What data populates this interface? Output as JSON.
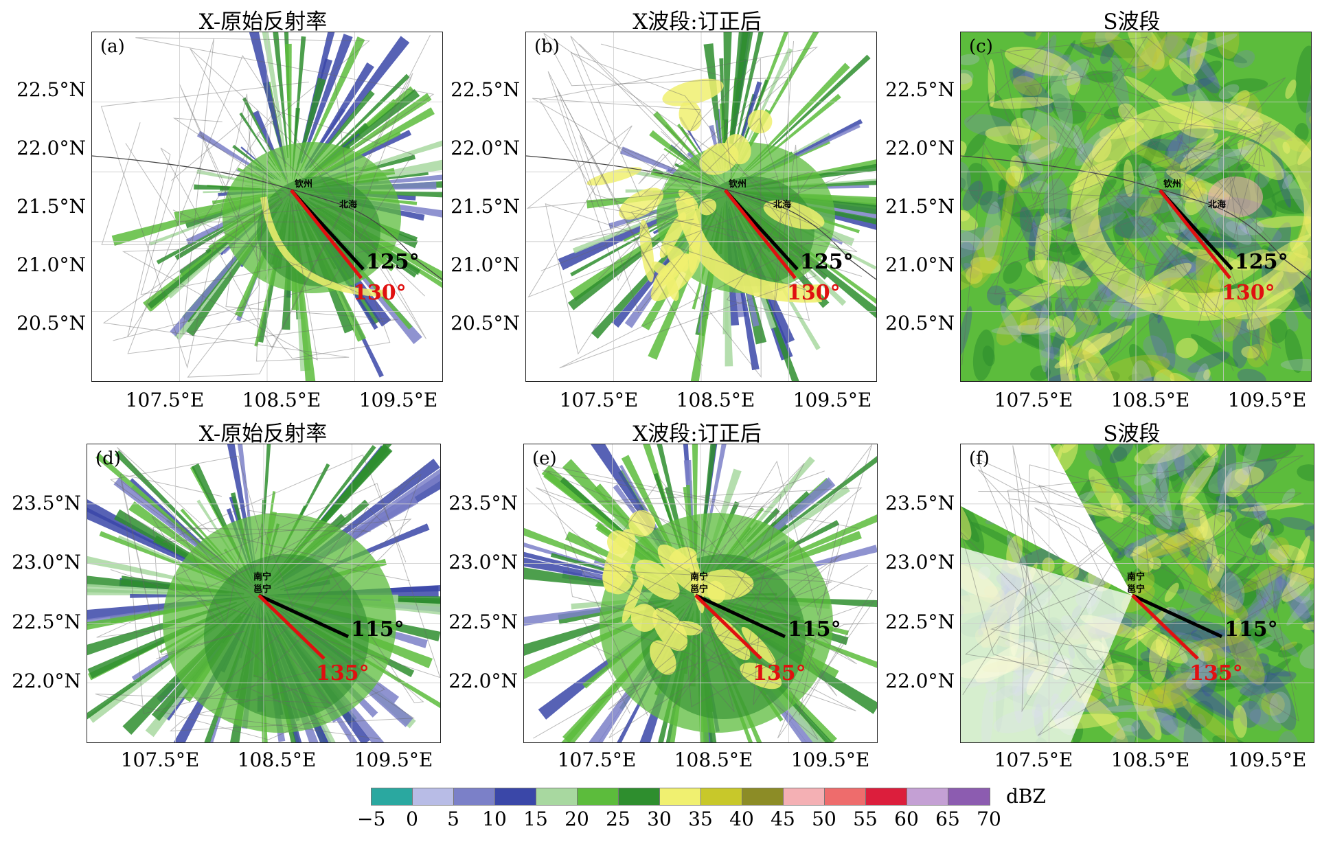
{
  "panels": [
    {
      "id": "a",
      "letter": "(a)",
      "title": "X-原始反射率",
      "lat_labels": [
        "22.5°N",
        "22.0°N",
        "21.5°N",
        "21.0°N",
        "20.5°N"
      ],
      "lon_labels": [
        "107.5°E",
        "108.5°E",
        "109.5°E"
      ],
      "black_angle": "125°",
      "red_angle": "130°",
      "cities": [
        "钦州",
        "北海"
      ]
    },
    {
      "id": "b",
      "letter": "(b)",
      "title": "X波段:订正后",
      "lat_labels": [
        "22.5°N",
        "22.0°N",
        "21.5°N",
        "21.0°N",
        "20.5°N"
      ],
      "lon_labels": [
        "107.5°E",
        "108.5°E",
        "109.5°E"
      ],
      "black_angle": "125°",
      "red_angle": "130°",
      "cities": [
        "钦州",
        "北海"
      ]
    },
    {
      "id": "c",
      "letter": "(c)",
      "title": "S波段",
      "lat_labels": [
        "22.5°N",
        "22.0°N",
        "21.5°N",
        "21.0°N",
        "20.5°N"
      ],
      "lon_labels": [
        "107.5°E",
        "108.5°E",
        "109.5°E"
      ],
      "black_angle": "125°",
      "red_angle": "130°",
      "cities": [
        "钦州",
        "北海"
      ]
    },
    {
      "id": "d",
      "letter": "(d)",
      "title": "X-原始反射率",
      "lat_labels": [
        "23.5°N",
        "23.0°N",
        "22.5°N",
        "22.0°N"
      ],
      "lon_labels": [
        "107.5°E",
        "108.5°E",
        "109.5°E"
      ],
      "black_angle": "115°",
      "red_angle": "135°",
      "cities": [
        "南宁",
        "邕宁"
      ]
    },
    {
      "id": "e",
      "letter": "(e)",
      "title": "X波段:订正后",
      "lat_labels": [
        "23.5°N",
        "23.0°N",
        "22.5°N",
        "22.0°N"
      ],
      "lon_labels": [
        "107.5°E",
        "108.5°E",
        "109.5°E"
      ],
      "black_angle": "115°",
      "red_angle": "135°",
      "cities": [
        "南宁",
        "邕宁"
      ]
    },
    {
      "id": "f",
      "letter": "(f)",
      "title": "S波段",
      "lat_labels": [
        "23.5°N",
        "23.0°N",
        "22.5°N",
        "22.0°N"
      ],
      "lon_labels": [
        "107.5°E",
        "108.5°E",
        "109.5°E"
      ],
      "black_angle": "115°",
      "red_angle": "135°",
      "cities": [
        "南宁",
        "邕宁"
      ]
    }
  ],
  "colorbar": {
    "unit": "dBZ",
    "ticks": [
      "−5",
      "0",
      "5",
      "10",
      "15",
      "20",
      "25",
      "30",
      "35",
      "40",
      "45",
      "50",
      "55",
      "60",
      "65",
      "70"
    ],
    "colors": [
      "#2aa8a0",
      "#b8bce6",
      "#7b80c8",
      "#3a47a8",
      "#a8d8a0",
      "#5cbc3c",
      "#2e8e2e",
      "#f0f070",
      "#c8c82a",
      "#8c8c26",
      "#f4b0b4",
      "#ee6c6c",
      "#dc1e3c",
      "#c4a0d4",
      "#8c5cb0"
    ]
  }
}
